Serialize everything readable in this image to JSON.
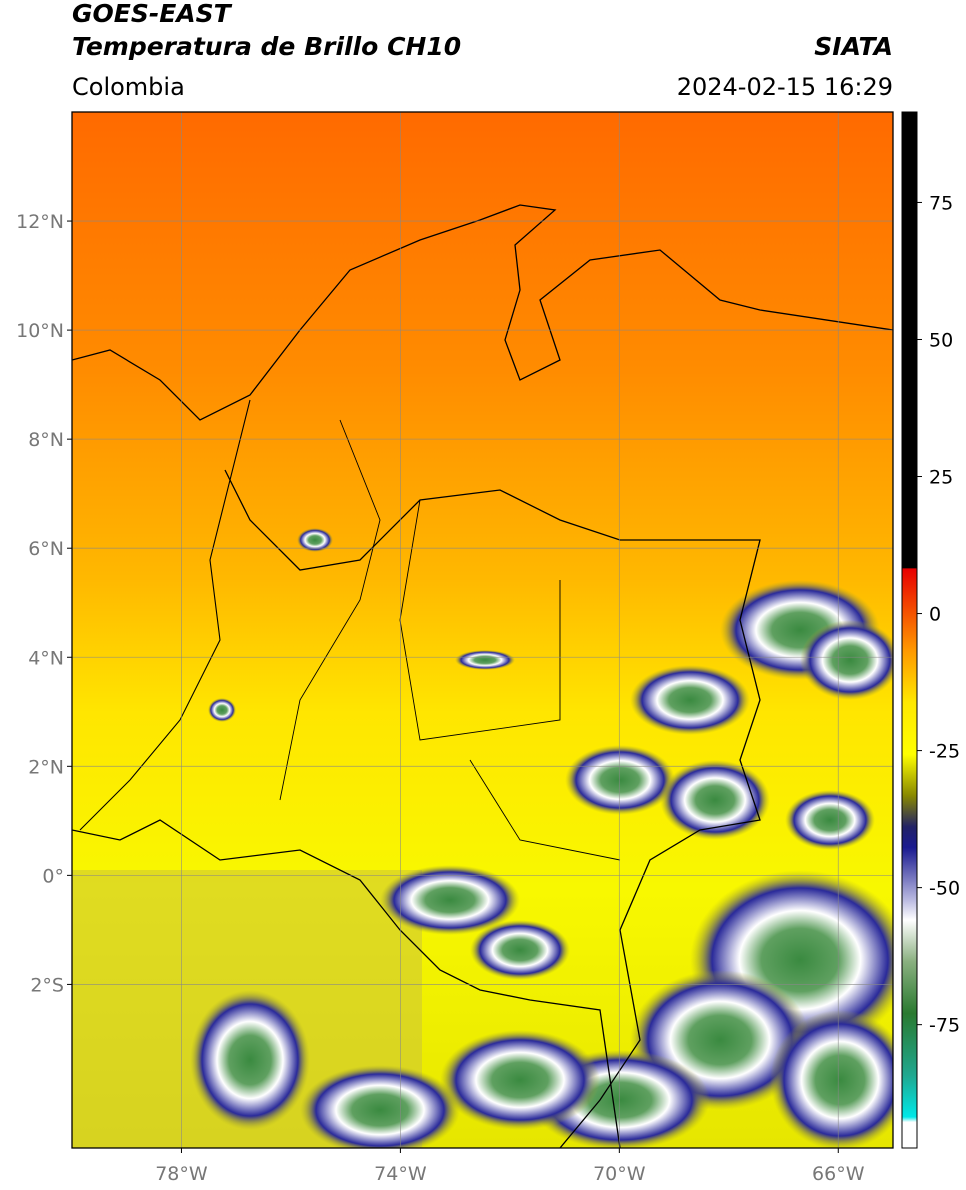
{
  "header": {
    "title": "GOES-EAST",
    "subtitle": "Temperatura de Brillo CH10",
    "region": "Colombia",
    "source": "SIATA",
    "datetime": "2024-02-15 16:29"
  },
  "map": {
    "lat_range": [
      -5,
      14
    ],
    "lon_range": [
      -80,
      -65
    ],
    "lat_ticks": [
      {
        "value": 12,
        "label": "12°N"
      },
      {
        "value": 10,
        "label": "10°N"
      },
      {
        "value": 8,
        "label": "8°N"
      },
      {
        "value": 6,
        "label": "6°N"
      },
      {
        "value": 4,
        "label": "4°N"
      },
      {
        "value": 2,
        "label": "2°N"
      },
      {
        "value": 0,
        "label": "0°"
      },
      {
        "value": -2,
        "label": "2°S"
      }
    ],
    "lon_ticks": [
      {
        "value": -78,
        "label": "78°W"
      },
      {
        "value": -74,
        "label": "74°W"
      },
      {
        "value": -70,
        "label": "70°W"
      },
      {
        "value": -66,
        "label": "66°W"
      }
    ]
  },
  "colorbar": {
    "range": [
      -97.5,
      91.5
    ],
    "ticks": [
      75,
      50,
      25,
      0,
      -25,
      -50,
      -75
    ]
  }
}
